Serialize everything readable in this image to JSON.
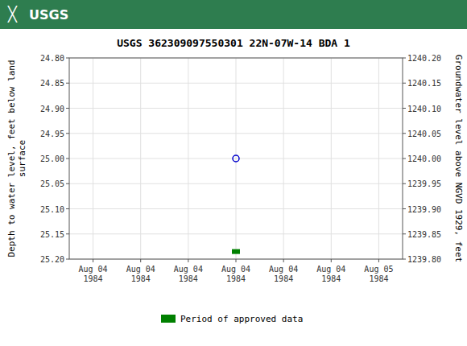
{
  "chart_data": {
    "type": "scatter",
    "title": "USGS 362309097550301 22N-07W-14 BDA 1",
    "annotations": [
      "╳",
      "USGS"
    ],
    "ylabel": "Depth to water level, feet below land\nsurface",
    "y2label": "Groundwater level above NGVD 1929, feet",
    "categories": [
      "Aug 04\n1984",
      "Aug 04\n1984",
      "Aug 04\n1984",
      "Aug 04\n1984",
      "Aug 04\n1984",
      "Aug 04\n1984",
      "Aug 05\n1984"
    ],
    "series": [
      {
        "color": "#0000cc",
        "marker": "circle",
        "values": [
          null,
          null,
          null,
          25.0,
          null,
          null,
          null
        ]
      },
      {
        "name": "Period of approved data",
        "color": "#008000",
        "marker": "square",
        "values": [
          null,
          null,
          null,
          25.185,
          null,
          null,
          null
        ]
      }
    ],
    "ylim": [
      25.2,
      24.8
    ],
    "yticks": [
      {
        "value": 24.8,
        "label": "24.80"
      },
      {
        "value": 24.85,
        "label": "24.85"
      },
      {
        "value": 24.9,
        "label": "24.90"
      },
      {
        "value": 24.95,
        "label": "24.95"
      },
      {
        "value": 25.0,
        "label": "25.00"
      },
      {
        "value": 25.05,
        "label": "25.05"
      },
      {
        "value": 25.1,
        "label": "25.10"
      },
      {
        "value": 25.15,
        "label": "25.15"
      },
      {
        "value": 25.2,
        "label": "25.20"
      }
    ],
    "y2lim": [
      1239.8,
      1240.2
    ],
    "y2ticks": [
      {
        "value": 1240.2,
        "label": "1240.20"
      },
      {
        "value": 1240.15,
        "label": "1240.15"
      },
      {
        "value": 1240.1,
        "label": "1240.10"
      },
      {
        "value": 1240.05,
        "label": "1240.05"
      },
      {
        "value": 1240.0,
        "label": "1240.00"
      },
      {
        "value": 1239.95,
        "label": "1239.95"
      },
      {
        "value": 1239.9,
        "label": "1239.90"
      },
      {
        "value": 1239.85,
        "label": "1239.85"
      },
      {
        "value": 1239.8,
        "label": "1239.80"
      }
    ],
    "grid": true,
    "legend": "bottom"
  }
}
